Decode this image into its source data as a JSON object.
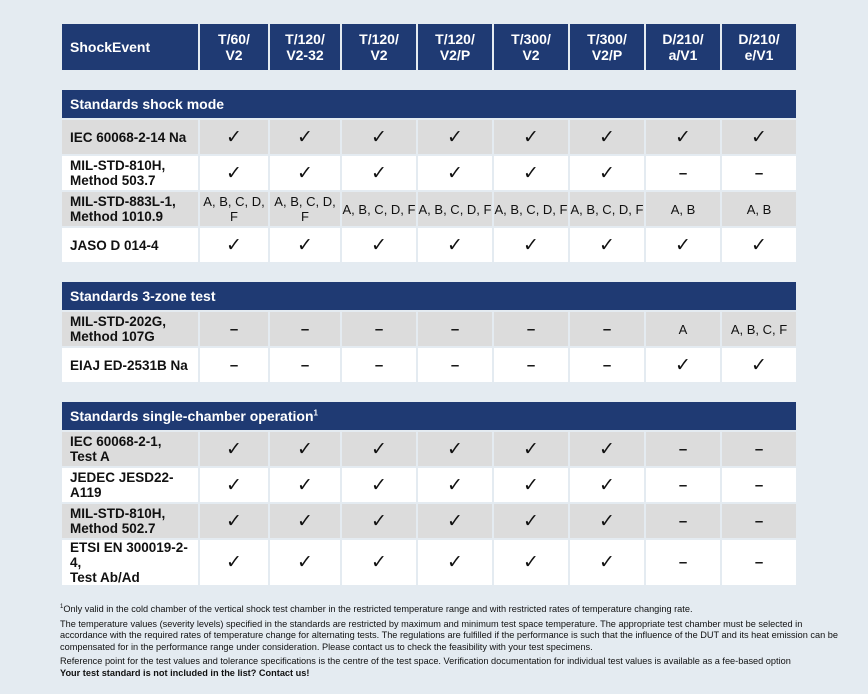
{
  "header": {
    "corner": "ShockEvent",
    "columns": [
      "T/60/\nV2",
      "T/120/\nV2-32",
      "T/120/\nV2",
      "T/120/\nV2/P",
      "T/300/\nV2",
      "T/300/\nV2/P",
      "D/210/\na/V1",
      "D/210/\ne/V1"
    ]
  },
  "sections": [
    {
      "title": "Standards shock mode",
      "rows": [
        {
          "label": "IEC 60068-2-14 Na",
          "cells": [
            "✓",
            "✓",
            "✓",
            "✓",
            "✓",
            "✓",
            "✓",
            "✓"
          ]
        },
        {
          "label": "MIL-STD-810H,\nMethod 503.7",
          "cells": [
            "✓",
            "✓",
            "✓",
            "✓",
            "✓",
            "✓",
            "–",
            "–"
          ]
        },
        {
          "label": "MIL-STD-883L-1,\nMethod 1010.9",
          "cells": [
            "A, B, C, D, F",
            "A, B, C, D, F",
            "A, B, C, D, F",
            "A, B, C, D, F",
            "A, B, C, D, F",
            "A, B, C, D, F",
            "A, B",
            "A, B"
          ]
        },
        {
          "label": "JASO D 014-4",
          "cells": [
            "✓",
            "✓",
            "✓",
            "✓",
            "✓",
            "✓",
            "✓",
            "✓"
          ]
        }
      ]
    },
    {
      "title": "Standards 3-zone test",
      "rows": [
        {
          "label": "MIL-STD-202G,\nMethod 107G",
          "cells": [
            "–",
            "–",
            "–",
            "–",
            "–",
            "–",
            "A",
            "A, B, C, F"
          ]
        },
        {
          "label": "EIAJ ED-2531B Na",
          "cells": [
            "–",
            "–",
            "–",
            "–",
            "–",
            "–",
            "✓",
            "✓"
          ]
        }
      ]
    },
    {
      "title": "Standards single-chamber operation",
      "title_sup": "1",
      "rows": [
        {
          "label": "IEC 60068-2-1,\nTest A",
          "cells": [
            "✓",
            "✓",
            "✓",
            "✓",
            "✓",
            "✓",
            "–",
            "–"
          ]
        },
        {
          "label": "JEDEC JESD22-A119",
          "cells": [
            "✓",
            "✓",
            "✓",
            "✓",
            "✓",
            "✓",
            "–",
            "–"
          ]
        },
        {
          "label": "MIL-STD-810H,\nMethod 502.7",
          "cells": [
            "✓",
            "✓",
            "✓",
            "✓",
            "✓",
            "✓",
            "–",
            "–"
          ]
        },
        {
          "label": "ETSI EN 300019-2-4,\nTest Ab/Ad",
          "cells": [
            "✓",
            "✓",
            "✓",
            "✓",
            "✓",
            "✓",
            "–",
            "–"
          ]
        }
      ]
    }
  ],
  "footnotes": {
    "footnote_mark": "1",
    "footnote_1": "Only valid in the cold chamber of the vertical shock test chamber in the restricted temperature range and with restricted rates of temperature changing rate.",
    "note_2": "The temperature values (severity levels) specified in the standards are restricted by maximum and minimum test space temperature. The appropriate test chamber must be selected in accordance with the required rates of temperature change for alternating tests. The regulations are fulfilled if the performance is such that the influence of the DUT and its heat emission can be compensated for in the performance range under consideration. Please contact us to check the feasibility with your test specimens.",
    "note_3": "Reference point for the test values and tolerance specifications is the centre of the test space. Verification documentation for individual test values is available as a fee-based option",
    "contact": "Your test standard is not included in the list? Contact us!"
  },
  "colors": {
    "header_bg": "#1f3a73",
    "row_gray": "#dcdcdc",
    "row_white": "#ffffff",
    "page_bg": "#e4ebf1"
  }
}
